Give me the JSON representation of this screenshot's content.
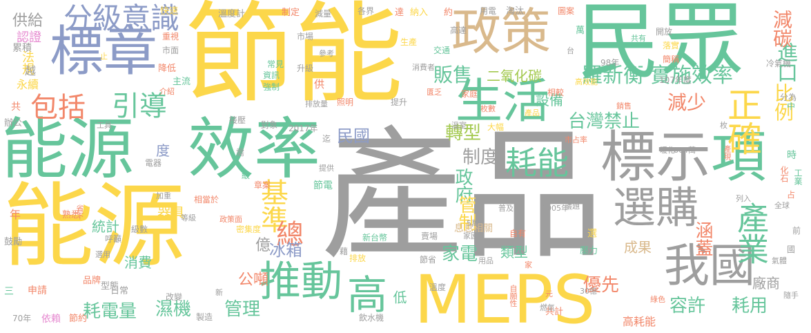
{
  "palette": {
    "gray": "#9e9e9e",
    "yellow": "#fcd74a",
    "green": "#66c59b",
    "blue": "#8c9bc7",
    "orange": "#f2876a",
    "lime": "#a3c94f",
    "tan": "#d9b98c",
    "pink": "#e68ad0"
  },
  "words": [
    {
      "text": "產品",
      "c": "gray"
    },
    {
      "text": "節能",
      "c": "yellow"
    },
    {
      "text": "能源",
      "c": "yellow"
    },
    {
      "text": "民眾",
      "c": "green"
    },
    {
      "text": "能源",
      "c": "green"
    },
    {
      "text": "效率",
      "c": "green"
    },
    {
      "text": "標示",
      "c": "gray"
    },
    {
      "text": "項",
      "c": "green"
    },
    {
      "text": "MEPS",
      "c": "yellow"
    },
    {
      "text": "標章",
      "c": "blue"
    },
    {
      "text": "政策",
      "c": "tan"
    },
    {
      "text": "生活",
      "c": "green"
    },
    {
      "text": "選購",
      "c": "gray"
    },
    {
      "text": "我國",
      "c": "gray"
    },
    {
      "text": "推動",
      "c": "green"
    },
    {
      "text": "高",
      "c": "green"
    },
    {
      "text": "耗能",
      "c": "green"
    },
    {
      "text": "分級意識",
      "c": "blue"
    },
    {
      "text": "包括",
      "c": "orange"
    },
    {
      "text": "引導",
      "c": "green"
    },
    {
      "text": "正確",
      "c": "yellow"
    },
    {
      "text": "產業",
      "c": "green"
    },
    {
      "text": "基準",
      "c": "yellow"
    },
    {
      "text": "總",
      "c": "orange"
    },
    {
      "text": "實施效率",
      "c": "green"
    },
    {
      "text": "羅新衡",
      "c": "green"
    },
    {
      "text": "販售",
      "c": "green"
    },
    {
      "text": "進口",
      "c": "green"
    },
    {
      "text": "減碳",
      "c": "orange"
    },
    {
      "text": "比例",
      "c": "yellow"
    },
    {
      "text": "減少",
      "c": "orange"
    },
    {
      "text": "台灣禁止",
      "c": "green"
    },
    {
      "text": "轉型",
      "c": "lime"
    },
    {
      "text": "制度",
      "c": "gray"
    },
    {
      "text": "政府",
      "c": "green"
    },
    {
      "text": "民國",
      "c": "blue"
    },
    {
      "text": "冰箱",
      "c": "blue"
    },
    {
      "text": "家電",
      "c": "green"
    },
    {
      "text": "優先",
      "c": "orange"
    },
    {
      "text": "容許",
      "c": "green"
    },
    {
      "text": "耗用",
      "c": "green"
    },
    {
      "text": "涵蓋",
      "c": "orange"
    },
    {
      "text": "管制",
      "c": "yellow"
    },
    {
      "text": "濕機",
      "c": "green"
    },
    {
      "text": "管理",
      "c": "green"
    },
    {
      "text": "耗電量",
      "c": "green"
    },
    {
      "text": "供給",
      "c": "gray"
    },
    {
      "text": "億",
      "c": "gray"
    },
    {
      "text": "公噸",
      "c": "orange"
    },
    {
      "text": "成果",
      "c": "tan"
    },
    {
      "text": "設備",
      "c": "green"
    },
    {
      "text": "二氧化碳",
      "c": "lime"
    },
    {
      "text": "統計",
      "c": "green"
    },
    {
      "text": "器具",
      "c": "yellow"
    },
    {
      "text": "消費",
      "c": "green"
    },
    {
      "text": "類型",
      "c": "green"
    },
    {
      "text": "低",
      "c": "green"
    },
    {
      "text": "廠商",
      "c": "gray"
    },
    {
      "text": "高耗能",
      "c": "orange"
    },
    {
      "text": "度",
      "c": "blue"
    },
    {
      "text": "認證",
      "c": "pink"
    },
    {
      "text": "累積",
      "c": "gray"
    },
    {
      "text": "法規",
      "c": "yellow"
    },
    {
      "text": "越",
      "c": "gray"
    },
    {
      "text": "永續",
      "c": "yellow"
    },
    {
      "text": "共",
      "c": "orange"
    },
    {
      "text": "辦公",
      "c": "gray"
    },
    {
      "text": "鼓勵",
      "c": "gray"
    },
    {
      "text": "年",
      "c": "orange"
    },
    {
      "text": "三",
      "c": "green"
    },
    {
      "text": "70年",
      "c": "gray"
    },
    {
      "text": "依賴",
      "c": "pink"
    },
    {
      "text": "節約",
      "c": "orange"
    },
    {
      "text": "申請",
      "c": "orange"
    },
    {
      "text": "品牌",
      "c": "orange"
    },
    {
      "text": "型態",
      "c": "gray"
    },
    {
      "text": "日常",
      "c": "gray"
    },
    {
      "text": "改變",
      "c": "gray"
    },
    {
      "text": "製造",
      "c": "gray"
    },
    {
      "text": "飲水機",
      "c": "gray"
    },
    {
      "text": "共計",
      "c": "orange"
    },
    {
      "text": "快速",
      "c": "yellow"
    },
    {
      "text": "溫度計",
      "c": "gray"
    },
    {
      "text": "制定",
      "c": "orange"
    },
    {
      "text": "減量",
      "c": "gray"
    },
    {
      "text": "各界",
      "c": "gray"
    },
    {
      "text": "達",
      "c": "orange"
    },
    {
      "text": "納入",
      "c": "yellow"
    },
    {
      "text": "約",
      "c": "orange"
    },
    {
      "text": "用電",
      "c": "gray"
    },
    {
      "text": "淘汰",
      "c": "gray"
    },
    {
      "text": "圖案",
      "c": "orange"
    },
    {
      "text": "萬",
      "c": "green"
    },
    {
      "text": "開放",
      "c": "gray"
    },
    {
      "text": "落實",
      "c": "yellow"
    },
    {
      "text": "簡稱",
      "c": "orange"
    },
    {
      "text": "冷氣機",
      "c": "gray"
    },
    {
      "text": "98年",
      "c": "gray"
    },
    {
      "text": "107年度",
      "c": "gray"
    },
    {
      "text": "高效能",
      "c": "yellow"
    },
    {
      "text": "分為",
      "c": "gray"
    },
    {
      "text": "相較",
      "c": "orange"
    },
    {
      "text": "銷售",
      "c": "orange"
    },
    {
      "text": "產品",
      "c": "yellow"
    },
    {
      "text": "暖化",
      "c": "gray"
    },
    {
      "text": "664萬",
      "c": "gray"
    },
    {
      "text": "化石",
      "c": "orange"
    },
    {
      "text": "工業",
      "c": "green"
    },
    {
      "text": "全球",
      "c": "gray"
    },
    {
      "text": "列入",
      "c": "gray"
    },
    {
      "text": "議題",
      "c": "gray"
    },
    {
      "text": "2005年",
      "c": "gray"
    },
    {
      "text": "普及率",
      "c": "gray"
    },
    {
      "text": "息息相關",
      "c": "tan"
    },
    {
      "text": "自有",
      "c": "orange"
    },
    {
      "text": "壓力",
      "c": "green"
    },
    {
      "text": "選",
      "c": "yellow"
    },
    {
      "text": "氣體",
      "c": "gray"
    },
    {
      "text": "綠色",
      "c": "orange"
    },
    {
      "text": "隨手",
      "c": "gray"
    },
    {
      "text": "自願性",
      "c": "orange"
    },
    {
      "text": "燃氣",
      "c": "gray"
    },
    {
      "text": "30億",
      "c": "gray"
    },
    {
      "text": "元",
      "c": "orange"
    },
    {
      "text": "溫度",
      "c": "gray"
    },
    {
      "text": "節省",
      "c": "gray"
    },
    {
      "text": "排放",
      "c": "yellow"
    },
    {
      "text": "賣場",
      "c": "gray"
    },
    {
      "text": "家園",
      "c": "gray"
    },
    {
      "text": "新台幣",
      "c": "green"
    },
    {
      "text": "藉",
      "c": "gray"
    },
    {
      "text": "5萬",
      "c": "gray"
    },
    {
      "text": "用品",
      "c": "gray"
    },
    {
      "text": "密集度",
      "c": "yellow"
    },
    {
      "text": "政策面",
      "c": "orange"
    },
    {
      "text": "相當於",
      "c": "orange"
    },
    {
      "text": "等級",
      "c": "gray"
    },
    {
      "text": "熟悉",
      "c": "orange"
    },
    {
      "text": "省下",
      "c": "orange"
    },
    {
      "text": "呼籲",
      "c": "gray"
    },
    {
      "text": "級數",
      "c": "gray"
    },
    {
      "text": "選用",
      "c": "gray"
    },
    {
      "text": "加重",
      "c": "gray"
    },
    {
      "text": "電器",
      "c": "gray"
    },
    {
      "text": "級",
      "c": "green"
    },
    {
      "text": "章案",
      "c": "orange"
    },
    {
      "text": "提供",
      "c": "gray"
    },
    {
      "text": "節電",
      "c": "green"
    },
    {
      "text": "接壓",
      "c": "gray"
    },
    {
      "text": "需",
      "c": "gray"
    },
    {
      "text": "工具",
      "c": "gray"
    },
    {
      "text": "對象",
      "c": "gray"
    },
    {
      "text": "2017年",
      "c": "gray"
    },
    {
      "text": "迄",
      "c": "gray"
    },
    {
      "text": "市占率",
      "c": "orange"
    },
    {
      "text": "大幅",
      "c": "yellow"
    },
    {
      "text": "溫室",
      "c": "gray"
    },
    {
      "text": "枚數",
      "c": "orange"
    },
    {
      "text": "照明",
      "c": "orange"
    },
    {
      "text": "排放量",
      "c": "gray"
    },
    {
      "text": "提升",
      "c": "gray"
    },
    {
      "text": "匱乏",
      "c": "orange"
    },
    {
      "text": "家庭",
      "c": "orange"
    },
    {
      "text": "消費者",
      "c": "gray"
    },
    {
      "text": "交通",
      "c": "green"
    },
    {
      "text": "高達",
      "c": "gray"
    },
    {
      "text": "生產",
      "c": "yellow"
    },
    {
      "text": "作用",
      "c": "yellow"
    },
    {
      "text": "市場",
      "c": "gray"
    },
    {
      "text": "參考",
      "c": "gray"
    },
    {
      "text": "升級",
      "c": "gray"
    },
    {
      "text": "常見",
      "c": "green"
    },
    {
      "text": "資訊",
      "c": "green"
    },
    {
      "text": "強制",
      "c": "green"
    },
    {
      "text": "供",
      "c": "orange"
    },
    {
      "text": "重視",
      "c": "orange"
    },
    {
      "text": "市面",
      "c": "gray"
    },
    {
      "text": "降低",
      "c": "orange"
    },
    {
      "text": "主流",
      "c": "green"
    },
    {
      "text": "介紹",
      "c": "orange"
    },
    {
      "text": "台",
      "c": "gray"
    },
    {
      "text": "共有",
      "c": "green"
    },
    {
      "text": "中",
      "c": "green"
    },
    {
      "text": "時",
      "c": "green"
    },
    {
      "text": "占",
      "c": "orange"
    },
    {
      "text": "前",
      "c": "gray"
    },
    {
      "text": "國",
      "c": "gray"
    },
    {
      "text": "枚",
      "c": "gray"
    },
    {
      "text": "產現",
      "c": "orange"
    },
    {
      "text": "止",
      "c": "yellow"
    },
    {
      "text": "家",
      "c": "orange"
    },
    {
      "text": "新",
      "c": "gray"
    }
  ]
}
